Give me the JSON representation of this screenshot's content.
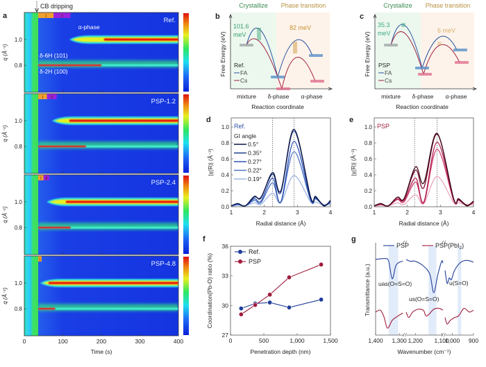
{
  "panel_letters": [
    "a",
    "b",
    "c",
    "d",
    "e",
    "f",
    "g"
  ],
  "chart_data": [
    {
      "id": "a",
      "type": "heatmap",
      "annotation_top": "CB dripping",
      "xlabel": "Time (s)",
      "ylabel": "q (Å⁻¹)",
      "xlim": [
        0,
        400
      ],
      "ylim": [
        0.59,
        1.21
      ],
      "xticks": [
        "0",
        "100",
        "200",
        "300",
        "400"
      ],
      "yticks": [
        "0.8",
        "1.0"
      ],
      "peak_labels": {
        "alpha": "α-phase",
        "d6h": "δ-6H (101)",
        "d2h": "δ-2H (100)"
      },
      "colormap": [
        "#0a1fd8",
        "#1d6cf5",
        "#1ee0f0",
        "#2ee860",
        "#e8f020",
        "#f08a10",
        "#e01010"
      ],
      "stage_colors": {
        "I": "#f0a030",
        "II": "#9a20e0"
      },
      "panels": [
        {
          "label": "Ref.",
          "dripping_time": 36,
          "stages": [
            {
              "name": "I",
              "start": 36,
              "end": 76
            },
            {
              "name": "II",
              "start": 76,
              "end": 120
            }
          ],
          "alpha_onset": 117,
          "alpha_max_from": 207,
          "delta_fade": 200
        },
        {
          "label": "PSP-1.2",
          "dripping_time": 36,
          "stages": [
            {
              "name": "I",
              "start": 36,
              "end": 59
            },
            {
              "name": "II",
              "start": 59,
              "end": 84
            }
          ],
          "alpha_onset": 72,
          "alpha_max_from": 117,
          "delta_fade": 160
        },
        {
          "label": "PSP-2.4",
          "dripping_time": 36,
          "stages": [
            {
              "name": "I",
              "start": 36,
              "end": 50
            },
            {
              "name": "II",
              "start": 50,
              "end": 65
            }
          ],
          "alpha_onset": 58,
          "alpha_max_from": 108,
          "delta_fade": 120
        },
        {
          "label": "PSP-4.8",
          "dripping_time": 36,
          "stages": [
            {
              "name": "I",
              "start": 36,
              "end": 45
            }
          ],
          "alpha_onset": 41,
          "alpha_max_from": 63,
          "delta_fade": 80
        }
      ]
    },
    {
      "id": "b",
      "type": "diagram",
      "header_left": "Crystallize",
      "header_right": "Phase transition",
      "ylabel": "Free Energy (eV)",
      "xlabel": "Reaction coordinate",
      "categories": [
        "mixture",
        "δ-phase",
        "α-phase"
      ],
      "barrier1": "101.6\nmeV",
      "barrier2": "82 meV",
      "legend_title": "Ref.",
      "legend": [
        {
          "name": "FA",
          "color": "#2a4fa0"
        },
        {
          "name": "Cs",
          "color": "#a02040"
        }
      ]
    },
    {
      "id": "c",
      "type": "diagram",
      "header_left": "Crystallize",
      "header_right": "Phase transition",
      "ylabel": "Free Energy (eV)",
      "xlabel": "Reaction coordinate",
      "categories": [
        "mixture",
        "δ-phase",
        "α-phase"
      ],
      "barrier1": "35.3\nmeV",
      "barrier2": "6 meV",
      "legend_title": "PSP",
      "legend": [
        {
          "name": "FA",
          "color": "#2a4fa0"
        },
        {
          "name": "Cs",
          "color": "#a02040"
        }
      ]
    },
    {
      "id": "d",
      "type": "line",
      "tag": "Ref.",
      "legend_title": "GI angle",
      "xlabel": "Radial distance (Å)",
      "ylabel": "|χ(R)| (Å⁻³)",
      "xlim": [
        1,
        4
      ],
      "ylim": [
        0,
        1.1
      ],
      "xticks": [
        "1",
        "2",
        "3",
        "4"
      ],
      "yticks": [
        "0.0",
        "0.2",
        "0.4",
        "0.6",
        "0.8",
        "1.0"
      ],
      "vlines": [
        2.25,
        2.9
      ],
      "x": [
        1.0,
        1.2,
        1.42,
        1.7,
        1.9,
        2.25,
        2.5,
        2.9,
        3.4,
        3.55,
        3.8,
        4.0
      ],
      "series": [
        {
          "name": "0.5°",
          "color": "#0b1540",
          "values": [
            0.01,
            0.04,
            0.01,
            0.13,
            0.11,
            0.43,
            0.2,
            0.97,
            0.12,
            0.13,
            0.01,
            0.08
          ]
        },
        {
          "name": "0.35°",
          "color": "#1c3a8c",
          "values": [
            0.01,
            0.04,
            0.01,
            0.12,
            0.12,
            0.41,
            0.18,
            0.95,
            0.11,
            0.12,
            0.02,
            0.07
          ]
        },
        {
          "name": "0.27°",
          "color": "#2b52b4",
          "values": [
            0.01,
            0.03,
            0.01,
            0.1,
            0.07,
            0.36,
            0.06,
            0.82,
            0.09,
            0.11,
            0.02,
            0.06
          ]
        },
        {
          "name": "0.22°",
          "color": "#4a72c4",
          "values": [
            0.01,
            0.03,
            0.01,
            0.08,
            0.05,
            0.3,
            0.06,
            0.69,
            0.08,
            0.1,
            0.02,
            0.05
          ]
        },
        {
          "name": "0.19°",
          "color": "#9fb6e4",
          "values": [
            0.0,
            0.02,
            0.01,
            0.05,
            0.03,
            0.17,
            0.05,
            0.39,
            0.06,
            0.06,
            0.02,
            0.03
          ]
        }
      ]
    },
    {
      "id": "e",
      "type": "line",
      "tag": "PSP",
      "xlabel": "Radial distance (Å)",
      "ylabel": "|χ(R)| (Å⁻³)",
      "xlim": [
        1,
        4
      ],
      "ylim": [
        0,
        1.1
      ],
      "xticks": [
        "1",
        "2",
        "3",
        "4"
      ],
      "yticks": [
        "0.0",
        "0.2",
        "0.4",
        "0.6",
        "0.8",
        "1.0"
      ],
      "vlines": [
        2.22,
        2.9
      ],
      "x": [
        1.0,
        1.2,
        1.42,
        1.7,
        1.9,
        2.25,
        2.5,
        2.9,
        3.4,
        3.55,
        3.8,
        4.0
      ],
      "series": [
        {
          "color": "#3a0814",
          "values": [
            0.01,
            0.04,
            0.01,
            0.12,
            0.1,
            0.5,
            0.3,
            0.92,
            0.1,
            0.1,
            0.01,
            0.07
          ]
        },
        {
          "color": "#7a1030",
          "values": [
            0.01,
            0.04,
            0.01,
            0.12,
            0.1,
            0.46,
            0.24,
            0.91,
            0.1,
            0.1,
            0.02,
            0.07
          ]
        },
        {
          "color": "#b02050",
          "values": [
            0.01,
            0.03,
            0.01,
            0.1,
            0.08,
            0.36,
            0.06,
            0.81,
            0.09,
            0.09,
            0.02,
            0.06
          ]
        },
        {
          "color": "#d04070",
          "values": [
            0.01,
            0.03,
            0.01,
            0.09,
            0.06,
            0.31,
            0.05,
            0.72,
            0.08,
            0.08,
            0.02,
            0.05
          ]
        },
        {
          "color": "#eaa6bc",
          "values": [
            0.0,
            0.02,
            0.01,
            0.05,
            0.03,
            0.15,
            0.04,
            0.38,
            0.05,
            0.05,
            0.02,
            0.03
          ]
        }
      ]
    },
    {
      "id": "f",
      "type": "line",
      "xlabel": "Penetration depth (nm)",
      "ylabel": "Coordination(Pb-O) ratio (%)",
      "xlim": [
        0,
        1500
      ],
      "ylim": [
        27,
        36
      ],
      "xticks": [
        "0",
        "500",
        "1,000",
        "1,500"
      ],
      "yticks": [
        "27",
        "30",
        "33",
        "36"
      ],
      "x": [
        160,
        370,
        590,
        880,
        1360
      ],
      "series": [
        {
          "name": "Ref.",
          "color": "#1f3d9a",
          "values": [
            29.7,
            30.2,
            30.3,
            29.8,
            30.6
          ]
        },
        {
          "name": "PSP",
          "color": "#a01c3c",
          "values": [
            29.1,
            30.05,
            31.1,
            32.85,
            34.15
          ]
        }
      ]
    },
    {
      "id": "g",
      "type": "line",
      "xlabel": "Wavenumber (cm⁻¹)",
      "ylabel": "Transmittance (a.u.)",
      "xlim": [
        1400,
        900
      ],
      "x_breaks": [
        [
          1280,
          1235
        ],
        [
          1095,
          1035
        ]
      ],
      "xticks": [
        "1,400",
        "1,300",
        "1,200",
        "1,100",
        "1,000",
        "900"
      ],
      "annotations": [
        "uas(O=S=O)",
        "us(O=S=O)",
        "u(S=O)"
      ],
      "shaded_ranges": [
        [
          1345,
          1305
        ],
        [
          1150,
          1120
        ],
        [
          975,
          958
        ]
      ],
      "series": [
        {
          "name": "PSP",
          "color": "#1f3d9a",
          "points": [
            [
              1400,
              0.82
            ],
            [
              1360,
              0.83
            ],
            [
              1345,
              0.8
            ],
            [
              1330,
              0.61
            ],
            [
              1315,
              0.75
            ],
            [
              1300,
              0.79
            ],
            [
              1285,
              0.8
            ],
            null,
            [
              1235,
              0.82
            ],
            [
              1220,
              0.8
            ],
            [
              1200,
              0.8
            ],
            [
              1170,
              0.75
            ],
            [
              1145,
              0.66
            ],
            [
              1130,
              0.46
            ],
            [
              1115,
              0.65
            ],
            [
              1100,
              0.8
            ],
            [
              1095,
              0.78
            ],
            null,
            [
              1035,
              0.7
            ],
            [
              1025,
              0.56
            ],
            [
              1015,
              0.62
            ],
            [
              1005,
              0.6
            ],
            [
              990,
              0.7
            ],
            [
              960,
              0.79
            ],
            [
              930,
              0.81
            ],
            [
              900,
              0.79
            ]
          ]
        },
        {
          "name": "PSP(PbI2)",
          "color": "#a01c3c",
          "points": [
            [
              1400,
              0.25
            ],
            [
              1380,
              0.27
            ],
            [
              1365,
              0.2
            ],
            [
              1350,
              0.075
            ],
            [
              1330,
              0.16
            ],
            [
              1310,
              0.2
            ],
            [
              1285,
              0.24
            ],
            null,
            [
              1235,
              0.25
            ],
            [
              1225,
              0.19
            ],
            [
              1210,
              0.25
            ],
            [
              1190,
              0.28
            ],
            [
              1170,
              0.27
            ],
            [
              1160,
              0.21
            ],
            [
              1150,
              0.22
            ],
            [
              1130,
              0.28
            ],
            [
              1110,
              0.29
            ],
            [
              1095,
              0.27
            ],
            null,
            [
              1035,
              0.19
            ],
            [
              1025,
              0.12
            ],
            [
              1010,
              0.16
            ],
            [
              990,
              0.19
            ],
            [
              970,
              0.21
            ],
            [
              945,
              0.29
            ],
            [
              920,
              0.25
            ],
            [
              900,
              0.27
            ]
          ]
        }
      ]
    }
  ]
}
